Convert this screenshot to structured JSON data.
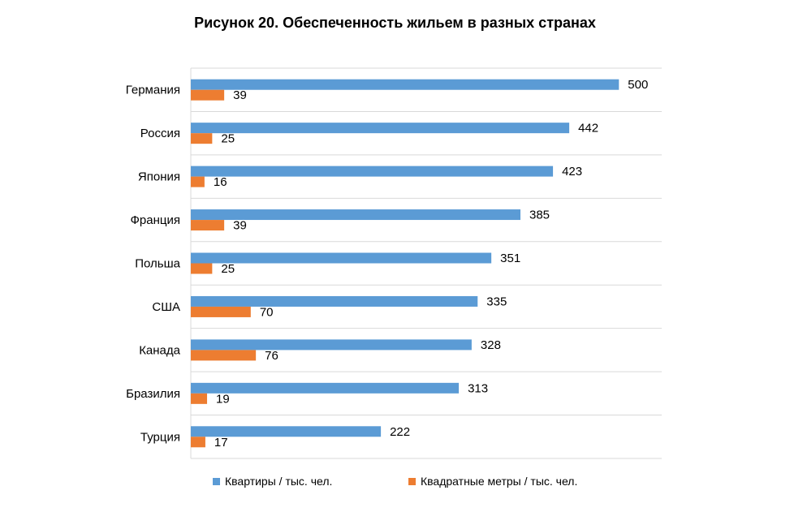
{
  "chart_data": {
    "type": "bar",
    "orientation": "horizontal",
    "title": "Рисунок 20. Обеспеченность жильем в разных странах",
    "categories": [
      "Германия",
      "Россия",
      "Япония",
      "Франция",
      "Польша",
      "США",
      "Канада",
      "Бразилия",
      "Турция"
    ],
    "series": [
      {
        "name": "Квартиры / тыс. чел.",
        "color": "#5B9BD5",
        "values": [
          500,
          442,
          423,
          385,
          351,
          335,
          328,
          313,
          222
        ]
      },
      {
        "name": "Квадратные метры / тыс. чел.",
        "color": "#ED7D31",
        "values": [
          39,
          25,
          16,
          39,
          25,
          70,
          76,
          19,
          17
        ]
      }
    ],
    "xlim": [
      0,
      550
    ],
    "grid": true,
    "legend_position": "bottom"
  }
}
